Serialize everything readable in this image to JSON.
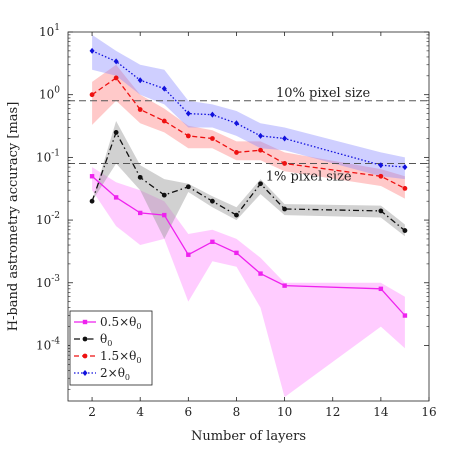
{
  "chart_data": {
    "type": "line",
    "xlabel": "Number of layers",
    "ylabel": "H-band astrometry accuracy [mas]",
    "y_scale": "log",
    "xlim": [
      1,
      16
    ],
    "ylim": [
      1.3e-05,
      10
    ],
    "x_ticks": [
      2,
      4,
      6,
      8,
      10,
      12,
      14,
      16
    ],
    "x_tick_labels": [
      "2",
      "4",
      "6",
      "8",
      "10",
      "12",
      "14",
      "16"
    ],
    "y_ticks": [
      0.0001,
      0.001,
      0.01,
      0.1,
      1,
      10
    ],
    "y_tick_bases": [
      "10",
      "10",
      "10",
      "10",
      "10",
      "10"
    ],
    "y_tick_exponents": [
      "-4",
      "-3",
      "-2",
      "-1",
      "0",
      "1"
    ],
    "grid": false,
    "legend_position": "bottom-left",
    "reference_lines": [
      {
        "label": "10% pixel size",
        "y": 0.8
      },
      {
        "label": "1% pixel size",
        "y": 0.08
      }
    ],
    "series": [
      {
        "name": "0.5×θ0",
        "legend_main": "0.5×θ",
        "legend_sub": "0",
        "color": "#ee22ee",
        "band_color": "#ff99ff",
        "band_opacity": 0.5,
        "line_style": "solid",
        "marker": "square",
        "x": [
          2,
          3,
          4,
          5,
          6,
          7,
          8,
          9,
          10,
          14,
          15
        ],
        "values": [
          0.05,
          0.023,
          0.013,
          0.012,
          0.0028,
          0.0045,
          0.003,
          0.0014,
          0.0009,
          0.0008,
          0.0003
        ],
        "lower": [
          0.03,
          0.008,
          0.004,
          0.005,
          0.0005,
          0.0022,
          0.0018,
          0.0004,
          1.5e-05,
          0.0002,
          9e-05
        ],
        "upper": [
          0.07,
          0.04,
          0.03,
          0.02,
          0.006,
          0.007,
          0.005,
          0.0025,
          0.001,
          0.001,
          0.0006
        ]
      },
      {
        "name": "θ0",
        "legend_main": "θ",
        "legend_sub": "0",
        "color": "#111111",
        "band_color": "#999999",
        "band_opacity": 0.45,
        "line_style": "dashdot",
        "marker": "circle",
        "x": [
          2,
          3,
          4,
          5,
          6,
          7,
          8,
          9,
          10,
          14,
          15
        ],
        "values": [
          0.02,
          0.25,
          0.048,
          0.025,
          0.034,
          0.02,
          0.012,
          0.038,
          0.015,
          0.014,
          0.0068
        ],
        "lower": [
          0.02,
          0.08,
          0.03,
          0.005,
          0.028,
          0.016,
          0.01,
          0.026,
          0.012,
          0.011,
          0.0055
        ],
        "upper": [
          0.02,
          0.38,
          0.075,
          0.045,
          0.038,
          0.024,
          0.016,
          0.045,
          0.018,
          0.017,
          0.0085
        ]
      },
      {
        "name": "1.5×θ0",
        "legend_main": "1.5×θ",
        "legend_sub": "0",
        "color": "#ee1111",
        "band_color": "#ff8888",
        "band_opacity": 0.45,
        "line_style": "dashed",
        "marker": "circle",
        "x": [
          2,
          3,
          4,
          5,
          6,
          7,
          8,
          9,
          10,
          14,
          15
        ],
        "values": [
          1.0,
          1.85,
          0.58,
          0.38,
          0.22,
          0.2,
          0.12,
          0.13,
          0.08,
          0.05,
          0.032
        ],
        "lower": [
          0.33,
          0.8,
          0.35,
          0.25,
          0.14,
          0.14,
          0.09,
          0.09,
          0.06,
          0.035,
          0.022
        ],
        "upper": [
          1.6,
          3.0,
          1.0,
          0.6,
          0.32,
          0.27,
          0.18,
          0.18,
          0.12,
          0.065,
          0.05
        ]
      },
      {
        "name": "2×θ0",
        "legend_main": "2×θ",
        "legend_sub": "0",
        "color": "#1111dd",
        "band_color": "#8888ff",
        "band_opacity": 0.4,
        "line_style": "dotted",
        "marker": "diamond",
        "x": [
          2,
          3,
          4,
          5,
          6,
          7,
          8,
          9,
          10,
          14,
          15
        ],
        "values": [
          5.0,
          3.4,
          1.7,
          1.25,
          0.5,
          0.48,
          0.35,
          0.22,
          0.2,
          0.075,
          0.07
        ],
        "lower": [
          2.5,
          2.0,
          1.0,
          0.7,
          0.3,
          0.3,
          0.22,
          0.14,
          0.13,
          0.05,
          0.045
        ],
        "upper": [
          9.0,
          5.0,
          3.0,
          2.5,
          0.8,
          0.7,
          0.55,
          0.35,
          0.3,
          0.12,
          0.1
        ]
      }
    ]
  }
}
